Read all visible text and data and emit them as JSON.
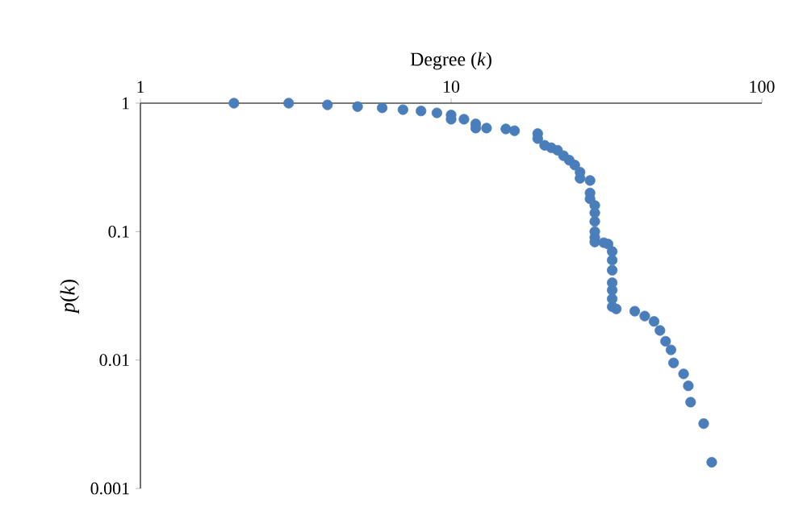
{
  "chart_data": {
    "type": "scatter",
    "xlabel": "Degree (*k*)",
    "ylabel": "*p*(*k*)",
    "log": "xy",
    "marker": "circle",
    "xlim": [
      1,
      100
    ],
    "ylim": [
      0.001,
      1
    ],
    "xticks": [
      1,
      10,
      100
    ],
    "yticks": [
      0.001,
      0.01,
      0.1,
      1
    ],
    "series": [
      {
        "color": "#4a7ebb",
        "x": [
          2,
          3,
          4,
          5,
          6,
          7,
          8,
          9,
          10,
          10,
          11,
          12,
          12,
          13,
          15,
          16,
          19,
          19,
          20,
          21,
          22,
          23,
          24,
          25,
          26,
          26,
          28,
          28,
          28,
          29,
          29,
          29,
          29,
          29,
          29,
          31,
          32,
          33,
          33,
          33,
          33,
          33,
          33,
          33,
          34,
          39,
          42,
          45,
          47,
          49,
          51,
          52,
          56,
          58,
          59,
          65,
          69
        ],
        "values": [
          1,
          1,
          0.97,
          0.94,
          0.92,
          0.89,
          0.87,
          0.84,
          0.81,
          0.75,
          0.75,
          0.69,
          0.64,
          0.64,
          0.63,
          0.61,
          0.58,
          0.53,
          0.47,
          0.45,
          0.43,
          0.39,
          0.36,
          0.33,
          0.29,
          0.26,
          0.25,
          0.2,
          0.18,
          0.16,
          0.14,
          0.12,
          0.1,
          0.09,
          0.083,
          0.082,
          0.08,
          0.07,
          0.06,
          0.05,
          0.04,
          0.035,
          0.03,
          0.026,
          0.025,
          0.024,
          0.022,
          0.02,
          0.017,
          0.014,
          0.012,
          0.0095,
          0.0078,
          0.0063,
          0.0047,
          0.0032,
          0.0016
        ]
      }
    ]
  }
}
